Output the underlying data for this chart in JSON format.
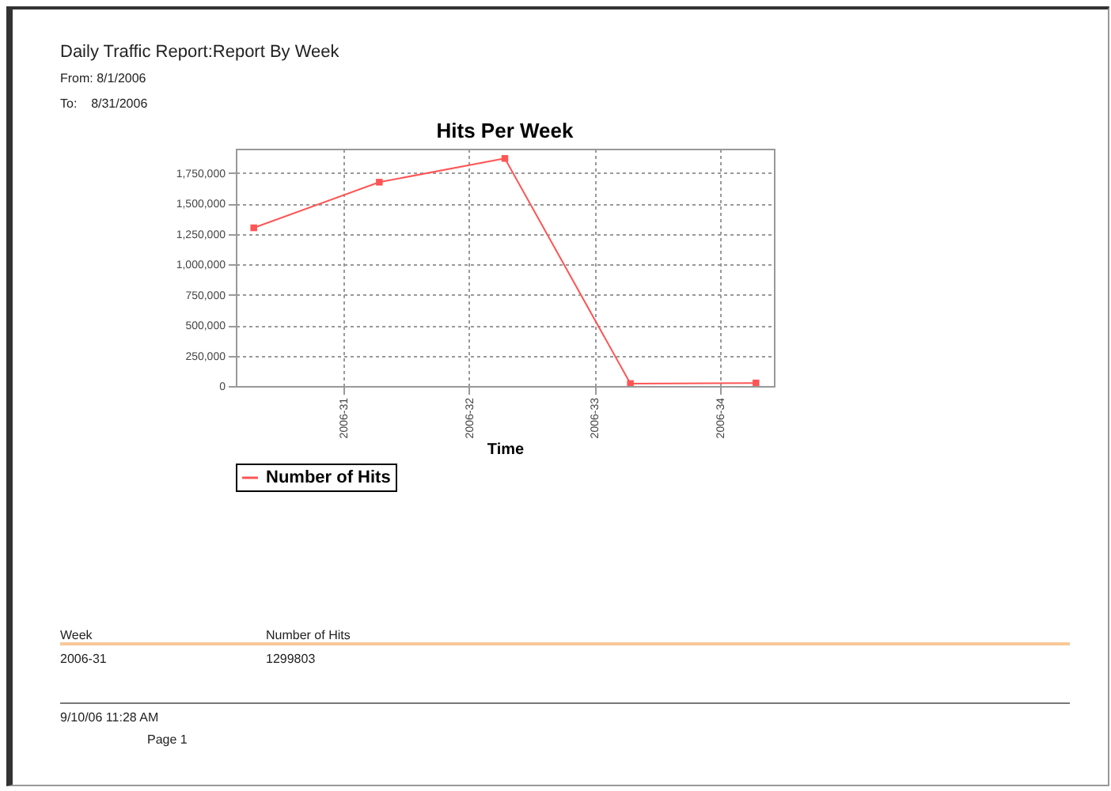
{
  "chart_data": {
    "type": "line",
    "title": "Hits Per Week",
    "xlabel": "Time",
    "x": [
      "2006-07-26",
      "2006-08-02",
      "2006-08-09",
      "2006-08-16",
      "2006-08-23"
    ],
    "series": [
      {
        "name": "Number of Hits",
        "color": "#ff5555",
        "values": [
          1300000,
          1675000,
          1870000,
          20000,
          25000
        ]
      }
    ],
    "xlim": [
      "2006-07-25",
      "2006-08-24"
    ],
    "xticks": [
      {
        "value": "2006-07-31",
        "label": "2006-31"
      },
      {
        "value": "2006-08-07",
        "label": "2006-32"
      },
      {
        "value": "2006-08-14",
        "label": "2006-33"
      },
      {
        "value": "2006-08-21",
        "label": "2006-34"
      }
    ],
    "ylim": [
      0,
      1950000
    ],
    "yticks": [
      0,
      {
        "value": 250000,
        "label": "250,000"
      },
      {
        "value": 500000,
        "label": "500,000"
      },
      {
        "value": 750000,
        "label": "750,000"
      },
      {
        "value": 1000000,
        "label": "1,000,000"
      },
      {
        "value": 1250000,
        "label": "1,250,000"
      },
      {
        "value": 1500000,
        "label": "1,500,000"
      },
      {
        "value": 1750000,
        "label": "1,750,000"
      }
    ],
    "grid": true,
    "legend": "bottom",
    "marker": "square",
    "annotations": [
      "Daily Traffic Report:Report By Week",
      "From: 8/1/2006",
      "To:    8/31/2006",
      "Week",
      "Number of Hits",
      "2006-31",
      "1299803",
      "9/10/06 11:28 AM",
      "Page 1"
    ]
  }
}
